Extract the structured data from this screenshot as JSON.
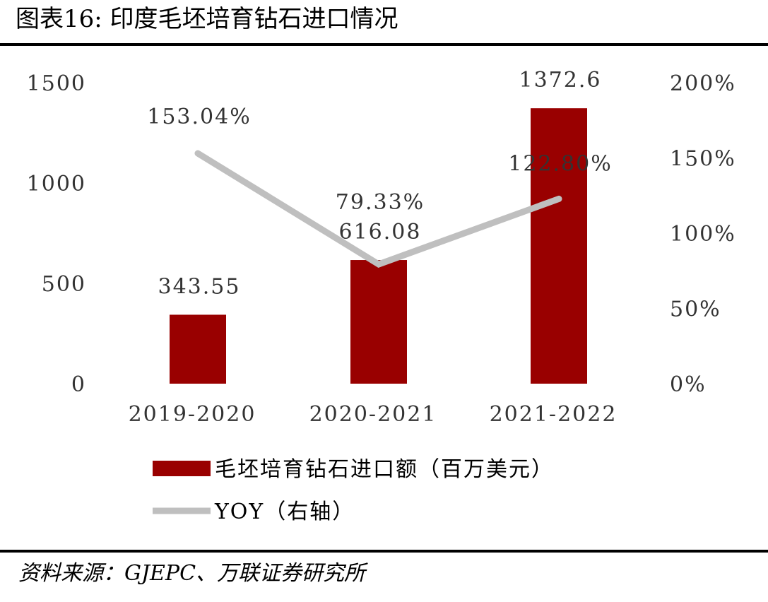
{
  "header": {
    "title": "图表16:  印度毛坯培育钻石进口情况"
  },
  "footer": {
    "source": "资料来源：GJEPC、万联证券研究所"
  },
  "chart_data": {
    "type": "bar",
    "categories": [
      "2019-2020",
      "2020-2021",
      "2021-2022"
    ],
    "series": [
      {
        "name": "毛坯培育钻石进口额（百万美元）",
        "type": "bar",
        "axis": "left",
        "values": [
          343.55,
          616.08,
          1372.6
        ],
        "labels": [
          "343.55",
          "616.08",
          "1372.6"
        ],
        "color": "#990000"
      },
      {
        "name": "YOY（右轴）",
        "type": "line",
        "axis": "right",
        "values": [
          153.04,
          79.33,
          122.8
        ],
        "labels": [
          "153.04%",
          "79.33%",
          "122.80%"
        ],
        "color": "#bfbfbf"
      }
    ],
    "y_left": {
      "range": [
        0,
        1500
      ],
      "ticks": [
        "0",
        "500",
        "1000",
        "1500"
      ]
    },
    "y_right": {
      "range": [
        0,
        200
      ],
      "ticks": [
        "0%",
        "50%",
        "100%",
        "150%",
        "200%"
      ]
    },
    "grid": false,
    "legend_placement": "bottom"
  }
}
